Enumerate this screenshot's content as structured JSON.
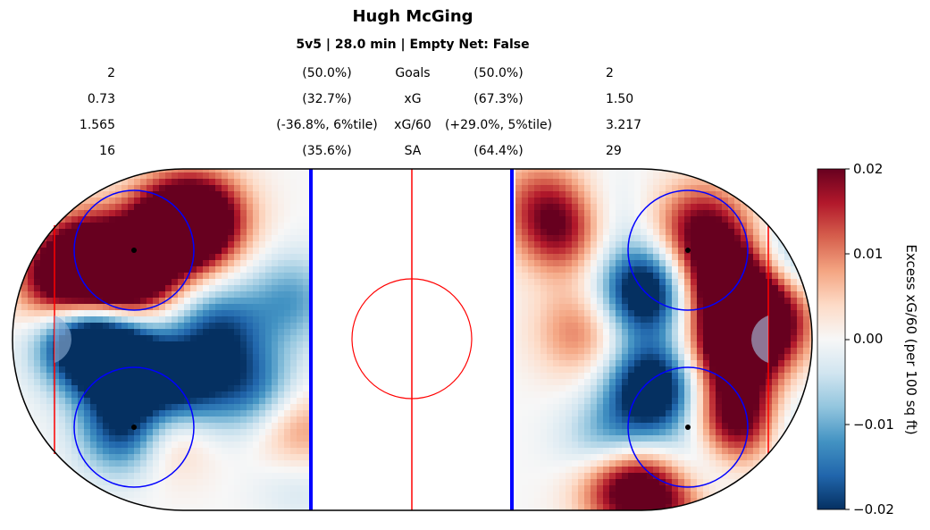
{
  "header": {
    "title": "Hugh McGing",
    "subtitle": "5v5 | 28.0 min | Empty Net: False"
  },
  "stats": [
    {
      "label": "Goals",
      "left_value": "2",
      "left_pct": "(50.0%)",
      "right_pct": "(50.0%)",
      "right_value": "2"
    },
    {
      "label": "xG",
      "left_value": "0.73",
      "left_pct": "(32.7%)",
      "right_pct": "(67.3%)",
      "right_value": "1.50"
    },
    {
      "label": "xG/60",
      "left_value": "1.565",
      "left_pct": "(-36.8%, 6%tile)",
      "right_pct": "(+29.0%, 5%tile)",
      "right_value": "3.217"
    },
    {
      "label": "SA",
      "left_value": "16",
      "left_pct": "(35.6%)",
      "right_pct": "(64.4%)",
      "right_value": "29"
    }
  ],
  "chart_data": {
    "type": "heatmap",
    "title": "Hugh McGing",
    "subtitle": "5v5 | 28.0 min | Empty Net: False",
    "colorbar": {
      "label": "Excess xG/60 (per 100 sq ft)",
      "ticks": [
        "0.02",
        "0.01",
        "0.00",
        "−0.01",
        "−0.02"
      ],
      "range": [
        -0.02,
        0.02
      ],
      "colormap": "RdBu_r"
    },
    "blobs": [
      {
        "x": -80,
        "y": 20,
        "value": 0.02
      },
      {
        "x": -60,
        "y": 28,
        "value": 0.02
      },
      {
        "x": -70,
        "y": 15,
        "value": 0.02
      },
      {
        "x": -52,
        "y": 30,
        "value": 0.018
      },
      {
        "x": -87,
        "y": 14,
        "value": 0.016
      },
      {
        "x": -82,
        "y": 0,
        "value": -0.02
      },
      {
        "x": -72,
        "y": -5,
        "value": -0.02
      },
      {
        "x": -70,
        "y": -22,
        "value": -0.02
      },
      {
        "x": -58,
        "y": -12,
        "value": -0.017
      },
      {
        "x": -48,
        "y": 2,
        "value": -0.012
      },
      {
        "x": -40,
        "y": -12,
        "value": -0.01
      },
      {
        "x": -30,
        "y": 10,
        "value": -0.008
      },
      {
        "x": -28,
        "y": -32,
        "value": -0.006
      },
      {
        "x": -63,
        "y": -22,
        "value": 0.014
      },
      {
        "x": -28,
        "y": -25,
        "value": 0.01
      },
      {
        "x": 60,
        "y": -12,
        "value": -0.02
      },
      {
        "x": 58,
        "y": 12,
        "value": -0.02
      },
      {
        "x": 50,
        "y": -28,
        "value": -0.014
      },
      {
        "x": 68,
        "y": -33,
        "value": -0.012
      },
      {
        "x": 78,
        "y": 15,
        "value": 0.02
      },
      {
        "x": 80,
        "y": -2,
        "value": 0.02
      },
      {
        "x": 82,
        "y": -20,
        "value": 0.02
      },
      {
        "x": 88,
        "y": 6,
        "value": 0.018
      },
      {
        "x": 72,
        "y": 28,
        "value": 0.014
      },
      {
        "x": 52,
        "y": -35,
        "value": 0.02
      },
      {
        "x": 64,
        "y": -38,
        "value": 0.018
      },
      {
        "x": 38,
        "y": 28,
        "value": 0.016
      },
      {
        "x": 42,
        "y": 2,
        "value": 0.008
      },
      {
        "x": 31,
        "y": 36,
        "value": 0.006
      },
      {
        "x": 45,
        "y": 30,
        "value": -0.006
      },
      {
        "x": 95,
        "y": 20,
        "value": -0.008
      },
      {
        "x": 92,
        "y": -22,
        "value": -0.008
      }
    ]
  }
}
